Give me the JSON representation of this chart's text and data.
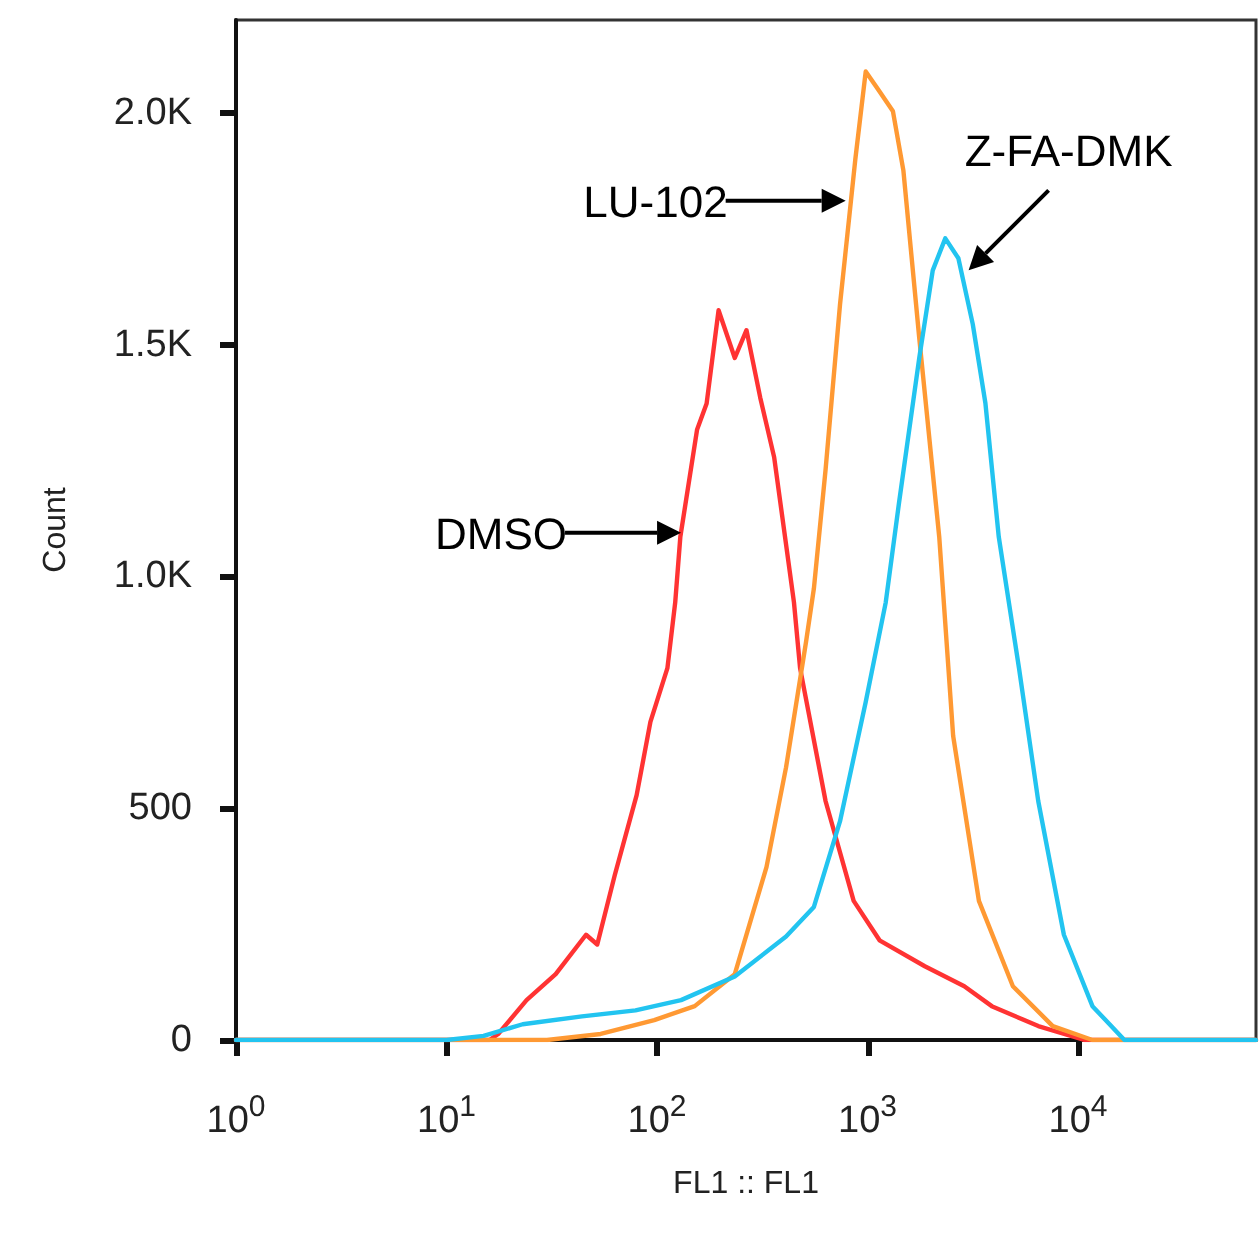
{
  "chart_data": {
    "type": "line",
    "xlabel": "FL1 :: FL1",
    "ylabel": "Count",
    "log": "x",
    "marker": "none",
    "grid": false,
    "xlim": [
      1,
      70000
    ],
    "ylim": [
      0,
      2200
    ],
    "xticks": [
      {
        "value": 1,
        "label": "10$^{0}$"
      },
      {
        "value": 10,
        "label": "10$^{1}$"
      },
      {
        "value": 100,
        "label": "10$^{2}$"
      },
      {
        "value": 1000,
        "label": "10$^{3}$"
      },
      {
        "value": 10000,
        "label": "10$^{4}$"
      }
    ],
    "yticks": [
      0,
      500,
      {
        "value": 1000,
        "label": "1.0K"
      },
      {
        "value": 1500,
        "label": "1.5K"
      },
      {
        "value": 2000,
        "label": "2.0K"
      }
    ],
    "series": [
      {
        "color": "#ff3333",
        "x": [
          1,
          10,
          16,
          17.6,
          24,
          33,
          46,
          52,
          63,
          80,
          93,
          112,
          122,
          129,
          155,
          172,
          196,
          234,
          266,
          309,
          360,
          447,
          478,
          632,
          859,
          1140,
          1870,
          2880,
          3890,
          6470,
          10700,
          70000
        ],
        "values": [
          0,
          0,
          0,
          13,
          86,
          142,
          227,
          206,
          356,
          528,
          686,
          802,
          944,
          1085,
          1317,
          1373,
          1574,
          1471,
          1531,
          1386,
          1257,
          944,
          802,
          515,
          300,
          215,
          159,
          116,
          73,
          30,
          0,
          0
        ]
      },
      {
        "color": "#ff9933",
        "x": [
          1,
          10,
          30,
          54,
          97,
          151,
          234,
          331,
          410,
          510,
          556,
          632,
          740,
          875,
          980,
          1140,
          1320,
          1480,
          1760,
          2190,
          2550,
          3380,
          4900,
          7580,
          11700,
          70000
        ],
        "values": [
          0,
          0,
          0,
          13,
          43,
          73,
          142,
          373,
          588,
          858,
          974,
          1231,
          1587,
          1900,
          2089,
          2046,
          2003,
          1875,
          1514,
          1085,
          656,
          300,
          116,
          30,
          0,
          0
        ]
      },
      {
        "color": "#22c4f0",
        "x": [
          1,
          10,
          15,
          23,
          44,
          79,
          130,
          234,
          410,
          556,
          740,
          980,
          1220,
          1410,
          1760,
          2040,
          2340,
          2700,
          3160,
          3630,
          4200,
          5240,
          6470,
          8560,
          11700,
          16600,
          70000
        ],
        "values": [
          0,
          0,
          9,
          34,
          51,
          64,
          86,
          137,
          223,
          287,
          472,
          729,
          944,
          1158,
          1471,
          1660,
          1729,
          1686,
          1544,
          1373,
          1085,
          802,
          515,
          227,
          73,
          0,
          0
        ]
      }
    ],
    "annotations": [
      {
        "text": "DMSO",
        "x": 130,
        "y": 1094
      },
      {
        "text": "LU-102",
        "x": 787,
        "y": 1810
      },
      {
        "text": "Z-FA-DMK",
        "x": 3020,
        "y": 1660
      }
    ]
  }
}
